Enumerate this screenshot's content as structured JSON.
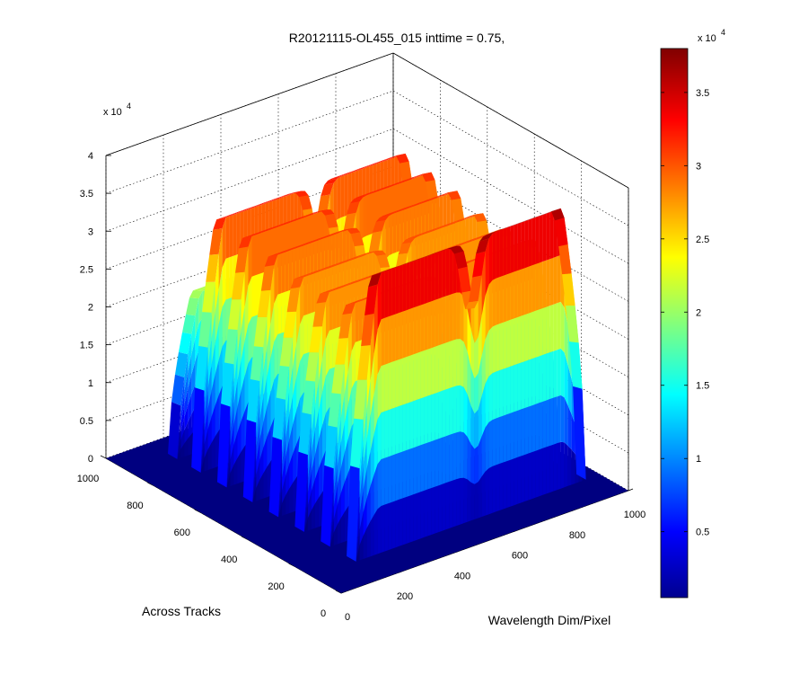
{
  "chart_data": {
    "type": "surface",
    "title": "R20121115-OL455_015 inttime = 0.75,",
    "xlabel": "Wavelength Dim/Pixel",
    "ylabel": "Across Tracks",
    "zlabel": "",
    "x_ticks": [
      "0",
      "200",
      "400",
      "600",
      "800",
      "1000"
    ],
    "y_ticks": [
      "0",
      "200",
      "400",
      "600",
      "800",
      "1000"
    ],
    "z_ticks": [
      "0",
      "0.5",
      "1",
      "1.5",
      "2",
      "2.5",
      "3",
      "3.5",
      "4"
    ],
    "z_exponent": "4",
    "exponent_base": "x 10",
    "xlim": [
      0,
      1000
    ],
    "ylim": [
      0,
      1000
    ],
    "zlim": [
      0,
      40000
    ],
    "grid": true,
    "colormap": "jet",
    "colorbar": {
      "ticks": [
        "0.5",
        "1",
        "1.5",
        "2",
        "2.5",
        "3",
        "3.5"
      ],
      "exponent": "4",
      "range": [
        500,
        38000
      ],
      "colors": [
        "#00008f",
        "#0000ff",
        "#00ffff",
        "#ffff00",
        "#ff0000",
        "#800000"
      ]
    },
    "bands": [
      {
        "y": 120,
        "peak": 37000,
        "x_range": [
          150,
          950
        ]
      },
      {
        "y": 230,
        "peak": 31000,
        "x_range": [
          150,
          950
        ]
      },
      {
        "y": 340,
        "peak": 30500,
        "x_range": [
          150,
          950
        ]
      },
      {
        "y": 450,
        "peak": 30500,
        "x_range": [
          150,
          950
        ]
      },
      {
        "y": 560,
        "peak": 31500,
        "x_range": [
          150,
          950
        ]
      },
      {
        "y": 670,
        "peak": 32000,
        "x_range": [
          150,
          950
        ]
      },
      {
        "y": 780,
        "peak": 32500,
        "x_range": [
          150,
          950
        ]
      },
      {
        "y": 880,
        "peak": 21000,
        "x_range": [
          150,
          950
        ]
      }
    ]
  }
}
